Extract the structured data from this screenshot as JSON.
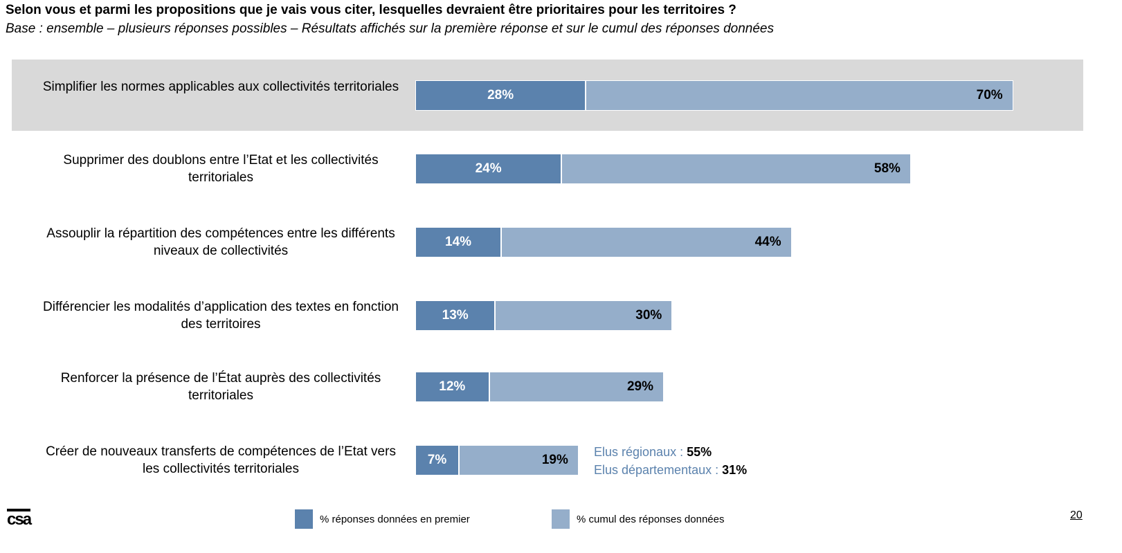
{
  "title": "Selon vous et parmi les propositions que je vais vous citer, lesquelles devraient être prioritaires pour les territoires ?",
  "subtitle": "Base : ensemble – plusieurs réponses possibles – Résultats affichés sur la première réponse et sur le cumul des réponses données",
  "colors": {
    "first": "#5b82ad",
    "cumul": "#95aeca",
    "highlight": "#d9d9d9"
  },
  "chart_data": {
    "type": "bar",
    "orientation": "horizontal",
    "categories": [
      "Simplifier les normes applicables aux collectivités territoriales",
      "Supprimer des doublons entre l’Etat et les collectivités territoriales",
      "Assouplir la répartition des compétences entre les différents niveaux de collectivités",
      "Différencier les modalités d’application des textes en fonction des territoires",
      "Renforcer la présence de l’État auprès des collectivités territoriales",
      "Créer de nouveaux transferts de compétences de l’Etat vers les collectivités territoriales"
    ],
    "series": [
      {
        "name": "% réponses données en premier",
        "values": [
          28,
          24,
          14,
          13,
          12,
          7
        ],
        "labels": [
          "28%",
          "24%",
          "14%",
          "13%",
          "12%",
          "7%"
        ]
      },
      {
        "name": "% cumul des réponses données",
        "values": [
          70,
          58,
          44,
          30,
          29,
          19
        ],
        "labels": [
          "70%",
          "58%",
          "44%",
          "30%",
          "29%",
          "19%"
        ]
      }
    ],
    "legend_position": "bottom",
    "grid": false,
    "highlighted_category": 0,
    "annotation": {
      "lines": [
        {
          "label": "Elus régionaux : ",
          "value": "55%"
        },
        {
          "label": "Elus départementaux : ",
          "value": "31%"
        }
      ]
    }
  },
  "footer": {
    "logo": "csa",
    "page_number": "20"
  }
}
